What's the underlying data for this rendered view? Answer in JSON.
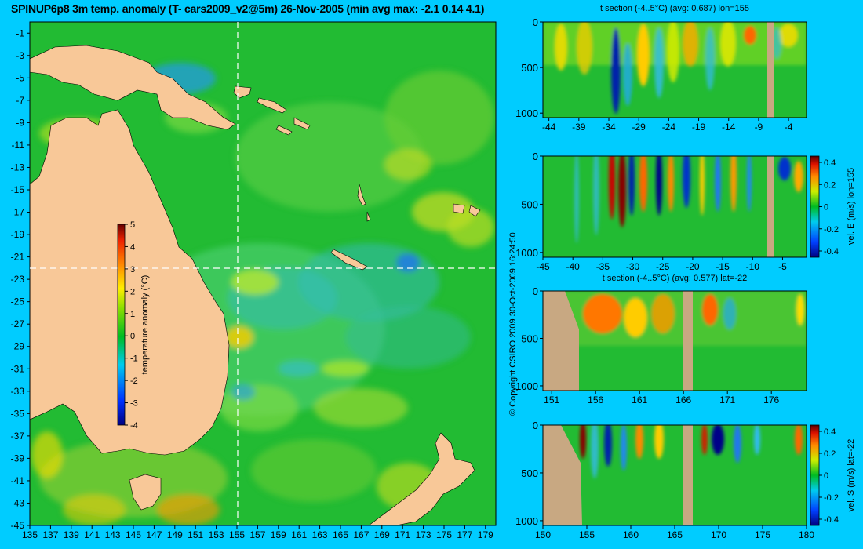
{
  "title": "SPINUP6p8 3m temp. anomaly (T- cars2009_v2@5m) 26-Nov-2005 (min avg max: -2.1 0.14 4.1)",
  "copyright": "© Copyright CSIRO 2009   30-Oct-2009 16:24:50",
  "colors": {
    "background": "#00ccff",
    "land": "#f8c898",
    "section_land": "#c8a882",
    "guide_lines": "#ffffff"
  },
  "chart_data": [
    {
      "type": "heatmap",
      "id": "map",
      "title": "SPINUP6p8 3m temp. anomaly (T- cars2009_v2@5m) 26-Nov-2005 (min avg max: -2.1 0.14 4.1)",
      "x_ticks": [
        "135",
        "137",
        "139",
        "141",
        "143",
        "145",
        "147",
        "149",
        "151",
        "153",
        "155",
        "157",
        "159",
        "161",
        "163",
        "165",
        "167",
        "169",
        "171",
        "173",
        "175",
        "177",
        "179"
      ],
      "y_ticks": [
        "-1",
        "-3",
        "-5",
        "-7",
        "-9",
        "-11",
        "-13",
        "-15",
        "-17",
        "-19",
        "-21",
        "-23",
        "-25",
        "-27",
        "-29",
        "-31",
        "-33",
        "-35",
        "-37",
        "-39",
        "-41",
        "-43",
        "-45"
      ],
      "xlim": [
        135,
        180
      ],
      "ylim": [
        -45,
        0
      ],
      "section_lon": 155,
      "section_lat": -22,
      "colorbar": {
        "label": "temperature anomaly (°C)",
        "ticks": [
          "5",
          "4",
          "3",
          "2",
          "1",
          "0",
          "-1",
          "-2",
          "-3",
          "-4"
        ],
        "range": [
          -4,
          5
        ]
      }
    },
    {
      "type": "heatmap",
      "id": "t_lon155",
      "title": "t section (-4..5°C) (avg: 0.687) lon=155",
      "x_ticks": [
        "-44",
        "-39",
        "-34",
        "-29",
        "-24",
        "-19",
        "-14",
        "-9",
        "-4"
      ],
      "y_ticks": [
        "0",
        "500",
        "1000"
      ],
      "xlim": [
        -45,
        -1
      ],
      "ylim": [
        1050,
        0
      ]
    },
    {
      "type": "heatmap",
      "id": "v_lon155",
      "title": "",
      "x_ticks": [
        "-45",
        "-40",
        "-35",
        "-30",
        "-25",
        "-20",
        "-15",
        "-10",
        "-5"
      ],
      "y_ticks": [
        "0",
        "500",
        "1000"
      ],
      "xlim": [
        -45,
        -1
      ],
      "ylim": [
        1050,
        0
      ],
      "colorbar": {
        "label": "vel. E (m/s) lon=155",
        "ticks": [
          "0.4",
          "0.2",
          "0",
          "-0.2",
          "-0.4"
        ],
        "range": [
          -0.4,
          0.4
        ]
      }
    },
    {
      "type": "heatmap",
      "id": "t_lat22",
      "title": "t section (-4..5°C) (avg: 0.577) lat=-22",
      "x_ticks": [
        "151",
        "156",
        "161",
        "166",
        "171",
        "176"
      ],
      "y_ticks": [
        "0",
        "500",
        "1000"
      ],
      "xlim": [
        150,
        180
      ],
      "ylim": [
        1050,
        0
      ]
    },
    {
      "type": "heatmap",
      "id": "v_lat22",
      "title": "",
      "x_ticks": [
        "150",
        "155",
        "160",
        "165",
        "170",
        "175",
        "180"
      ],
      "y_ticks": [
        "0",
        "500",
        "1000"
      ],
      "xlim": [
        150,
        180
      ],
      "ylim": [
        1050,
        0
      ],
      "colorbar": {
        "label": "vel. S (m/s) lat=-22",
        "ticks": [
          "0.4",
          "0.2",
          "0",
          "-0.2",
          "-0.4"
        ],
        "range": [
          -0.4,
          0.4
        ]
      }
    }
  ]
}
